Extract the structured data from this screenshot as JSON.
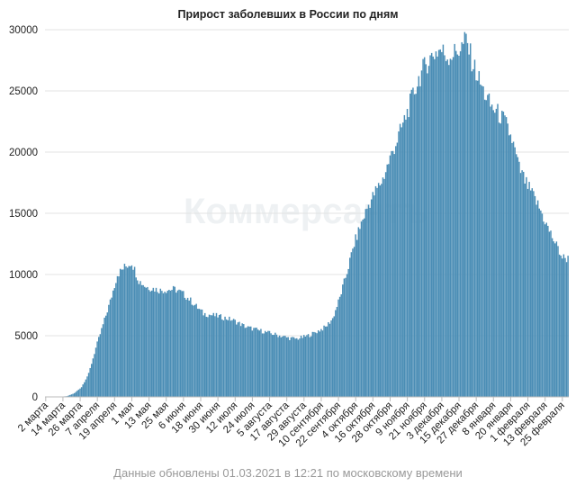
{
  "chart_data": {
    "type": "bar",
    "title": "Прирост заболевших в России по дням",
    "xlabel": "",
    "ylabel": "",
    "ylim": [
      0,
      30000
    ],
    "yticks": [
      0,
      5000,
      10000,
      15000,
      20000,
      25000,
      30000
    ],
    "grid": true,
    "bar_color": "#4a8db5",
    "x_start": "2020-03-02",
    "categories": [
      "2 марта",
      "14 марта",
      "26 марта",
      "7 апреля",
      "19 апреля",
      "1 мая",
      "13 мая",
      "25 мая",
      "6 июня",
      "18 июня",
      "30 июня",
      "12 июля",
      "24 июля",
      "5 августа",
      "17 августа",
      "29 августа",
      "10 сентября",
      "22 сентября",
      "4 октября",
      "16 октября",
      "28 октября",
      "9 ноября",
      "21 ноября",
      "3 декабря",
      "15 декабря",
      "27 декабря",
      "8 января",
      "20 января",
      "1 февраля",
      "13 февраля",
      "25 февраля"
    ],
    "keypoints": [
      [
        0,
        0
      ],
      [
        10,
        15
      ],
      [
        15,
        60
      ],
      [
        20,
        300
      ],
      [
        25,
        800
      ],
      [
        30,
        1900
      ],
      [
        35,
        4000
      ],
      [
        40,
        5900
      ],
      [
        45,
        7800
      ],
      [
        50,
        10000
      ],
      [
        55,
        10600
      ],
      [
        60,
        11000
      ],
      [
        65,
        9500
      ],
      [
        70,
        9000
      ],
      [
        80,
        8700
      ],
      [
        90,
        8800
      ],
      [
        95,
        8500
      ],
      [
        100,
        8000
      ],
      [
        110,
        6800
      ],
      [
        120,
        6600
      ],
      [
        130,
        6300
      ],
      [
        140,
        5700
      ],
      [
        150,
        5400
      ],
      [
        160,
        5100
      ],
      [
        170,
        4800
      ],
      [
        175,
        4750
      ],
      [
        180,
        4900
      ],
      [
        185,
        5100
      ],
      [
        190,
        5400
      ],
      [
        195,
        5700
      ],
      [
        200,
        6400
      ],
      [
        205,
        8100
      ],
      [
        210,
        10200
      ],
      [
        215,
        12500
      ],
      [
        220,
        14200
      ],
      [
        225,
        15700
      ],
      [
        230,
        16800
      ],
      [
        235,
        17800
      ],
      [
        240,
        19500
      ],
      [
        245,
        21000
      ],
      [
        250,
        22600
      ],
      [
        255,
        24300
      ],
      [
        260,
        26000
      ],
      [
        265,
        27200
      ],
      [
        270,
        28000
      ],
      [
        275,
        28400
      ],
      [
        280,
        27800
      ],
      [
        285,
        28100
      ],
      [
        290,
        28600
      ],
      [
        293,
        29200
      ],
      [
        297,
        27500
      ],
      [
        300,
        26500
      ],
      [
        305,
        25000
      ],
      [
        310,
        23800
      ],
      [
        315,
        23200
      ],
      [
        320,
        22500
      ],
      [
        325,
        21000
      ],
      [
        330,
        18700
      ],
      [
        335,
        17400
      ],
      [
        340,
        16400
      ],
      [
        345,
        15200
      ],
      [
        350,
        13800
      ],
      [
        355,
        12600
      ],
      [
        360,
        11400
      ],
      [
        364,
        11300
      ]
    ],
    "days_total": 365
  },
  "footer": {
    "updated": "Данные обновлены 01.03.2021 в 12:21 по московскому времени"
  },
  "watermark": "Коммерсантъ"
}
